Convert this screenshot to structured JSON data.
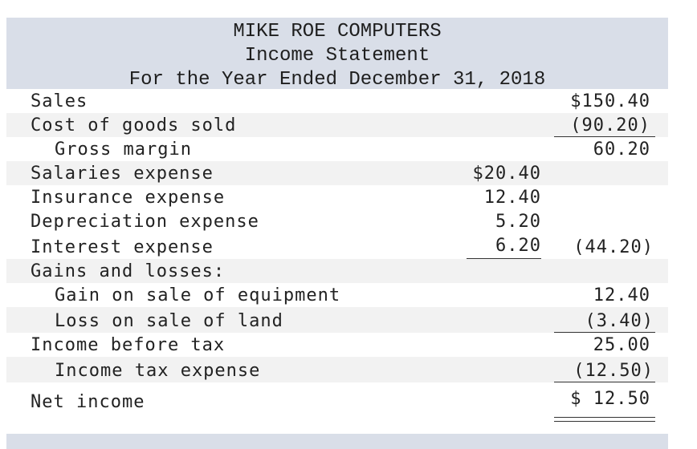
{
  "header": {
    "company": "MIKE ROE COMPUTERS",
    "statement": "Income Statement",
    "period": "For the Year Ended December 31, 2018"
  },
  "rows": [
    {
      "label": "Sales",
      "col1": "",
      "col2": "$150.40"
    },
    {
      "label": "Cost of goods sold",
      "col1": "",
      "col2": "(90.20)"
    },
    {
      "label": "Gross margin",
      "col1": "",
      "col2": "60.20"
    },
    {
      "label": "Salaries expense",
      "col1": "$20.40",
      "col2": ""
    },
    {
      "label": "Insurance expense",
      "col1": "12.40",
      "col2": ""
    },
    {
      "label": "Depreciation expense",
      "col1": "5.20",
      "col2": ""
    },
    {
      "label": "Interest expense",
      "col1": "6.20",
      "col2": "(44.20)"
    },
    {
      "label": "Gains and losses:",
      "col1": "",
      "col2": ""
    },
    {
      "label": "Gain on sale of equipment",
      "col1": "",
      "col2": "12.40"
    },
    {
      "label": "Loss on sale of land",
      "col1": "",
      "col2": "(3.40)"
    },
    {
      "label": "Income before tax",
      "col1": "",
      "col2": "25.00"
    },
    {
      "label": "Income tax expense",
      "col1": "",
      "col2": "(12.50)"
    },
    {
      "label": "Net income",
      "col1": "",
      "col2": "$ 12.50"
    }
  ]
}
